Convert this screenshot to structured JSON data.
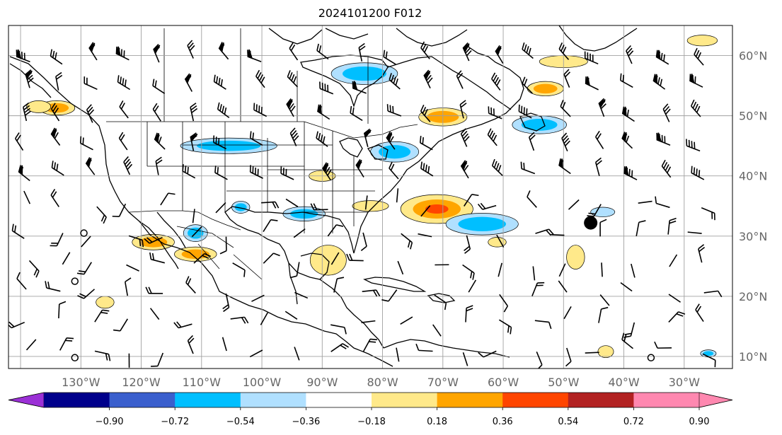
{
  "title": "2024101200 F012",
  "longitude_labels": [
    "130°W",
    "120°W",
    "110°W",
    "100°W",
    "90°W",
    "80°W",
    "70°W",
    "60°W",
    "50°W",
    "40°W",
    "30°W"
  ],
  "latitude_labels": [
    "60°N",
    "50°N",
    "40°N",
    "30°N",
    "20°N",
    "10°N"
  ],
  "colorbar": {
    "ticks": [
      "−0.90",
      "−0.72",
      "−0.54",
      "−0.36",
      "−0.18",
      "0.18",
      "0.36",
      "0.54",
      "0.72",
      "0.90"
    ],
    "colors": [
      "#9b30d6",
      "#00008b",
      "#3a5fcd",
      "#00bfff",
      "#b0e0ff",
      "#ffffff",
      "#ffe98a",
      "#ffa500",
      "#ff4500",
      "#b22222",
      "#ff88b0"
    ]
  },
  "chart_data": {
    "type": "heatmap",
    "title": "2024101200 F012",
    "xlim": [
      -142,
      -22
    ],
    "ylim": [
      8,
      65
    ],
    "grid": true,
    "colorbar_levels": [
      -0.9,
      -0.72,
      -0.54,
      -0.36,
      -0.18,
      0.18,
      0.36,
      0.54,
      0.72,
      0.9
    ],
    "positive_regions": [
      {
        "lon": -71,
        "lat": 34.5,
        "rx": 6,
        "ry": 2.4,
        "level": 0.54
      },
      {
        "lon": -53,
        "lat": 54.5,
        "rx": 3,
        "ry": 1.2,
        "level": 0.36
      },
      {
        "lon": -50,
        "lat": 59,
        "rx": 4,
        "ry": 1,
        "level": 0.18
      },
      {
        "lon": -134,
        "lat": 51.3,
        "rx": 3,
        "ry": 1.2,
        "level": 0.36
      },
      {
        "lon": -137,
        "lat": 51.5,
        "rx": 2,
        "ry": 1,
        "level": 0.18
      },
      {
        "lon": -118,
        "lat": 29,
        "rx": 3.5,
        "ry": 1.3,
        "level": 0.36
      },
      {
        "lon": -111,
        "lat": 27,
        "rx": 3.5,
        "ry": 1.2,
        "level": 0.36
      },
      {
        "lon": -89,
        "lat": 26,
        "rx": 3,
        "ry": 2.5,
        "level": 0.18
      },
      {
        "lon": -82,
        "lat": 35,
        "rx": 3,
        "ry": 0.9,
        "level": 0.18
      },
      {
        "lon": -90,
        "lat": 40,
        "rx": 2.2,
        "ry": 0.9,
        "level": 0.18
      },
      {
        "lon": -70,
        "lat": 49.8,
        "rx": 4,
        "ry": 1.5,
        "level": 0.36
      },
      {
        "lon": -61,
        "lat": 29,
        "rx": 1.5,
        "ry": 0.8,
        "level": 0.18
      },
      {
        "lon": -48,
        "lat": 26.5,
        "rx": 1.5,
        "ry": 2,
        "level": 0.18
      },
      {
        "lon": -27,
        "lat": 62.5,
        "rx": 2.5,
        "ry": 0.9,
        "level": 0.18
      },
      {
        "lon": -126,
        "lat": 19,
        "rx": 1.5,
        "ry": 1,
        "level": 0.18
      },
      {
        "lon": -43,
        "lat": 10.8,
        "rx": 1.3,
        "ry": 1,
        "level": 0.18
      }
    ],
    "negative_regions": [
      {
        "lon": -83,
        "lat": 57,
        "rx": 5.5,
        "ry": 1.8,
        "level": -0.54
      },
      {
        "lon": -63.5,
        "lat": 32,
        "rx": 6,
        "ry": 1.8,
        "level": -0.54
      },
      {
        "lon": -78,
        "lat": 44,
        "rx": 4,
        "ry": 1.7,
        "level": -0.54
      },
      {
        "lon": -54,
        "lat": 48.5,
        "rx": 4.5,
        "ry": 1.5,
        "level": -0.54
      },
      {
        "lon": -105.5,
        "lat": 45,
        "rx": 8,
        "ry": 1.3,
        "level": -0.36
      },
      {
        "lon": -93,
        "lat": 33.7,
        "rx": 3.5,
        "ry": 1.2,
        "level": -0.36
      },
      {
        "lon": -111,
        "lat": 30.5,
        "rx": 2,
        "ry": 1.4,
        "level": -0.36
      },
      {
        "lon": -103.5,
        "lat": 34.8,
        "rx": 1.5,
        "ry": 1,
        "level": -0.36
      },
      {
        "lon": -43.5,
        "lat": 34,
        "rx": 2,
        "ry": 0.8,
        "level": -0.18
      },
      {
        "lon": -26,
        "lat": 10.5,
        "rx": 1.3,
        "ry": 0.6,
        "level": -0.36
      }
    ],
    "cyclone_markers": [
      {
        "lon": -45.5,
        "lat": 32.2
      }
    ],
    "calm_markers": [
      {
        "lon": -129.5,
        "lat": 30.5
      },
      {
        "lon": -131,
        "lat": 22.5
      },
      {
        "lon": -131,
        "lat": 9.8
      },
      {
        "lon": -35.5,
        "lat": 9.8
      }
    ]
  }
}
